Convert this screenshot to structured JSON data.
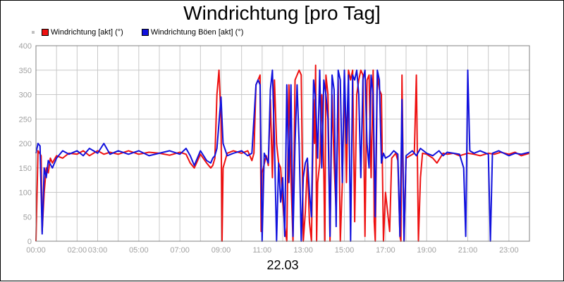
{
  "chart_data": {
    "type": "line",
    "title": "Windrichtung [pro Tag]",
    "xlabel": "22.03",
    "ylabel": "",
    "ylim": [
      0,
      400
    ],
    "yticks": [
      "0",
      "50",
      "100",
      "150",
      "200",
      "250",
      "300",
      "350",
      "400"
    ],
    "xlim": [
      0,
      24
    ],
    "xticks": [
      {
        "x": 0,
        "label": "00:00"
      },
      {
        "x": 2,
        "label": "02:00"
      },
      {
        "x": 3,
        "label": "03:00"
      },
      {
        "x": 5,
        "label": "05:00"
      },
      {
        "x": 7,
        "label": "07:00"
      },
      {
        "x": 9,
        "label": "09:00"
      },
      {
        "x": 11,
        "label": "11:00"
      },
      {
        "x": 13,
        "label": "13:00"
      },
      {
        "x": 15,
        "label": "15:00"
      },
      {
        "x": 17,
        "label": "17:00"
      },
      {
        "x": 19,
        "label": "19:00"
      },
      {
        "x": 21,
        "label": "21:00"
      },
      {
        "x": 23,
        "label": "23:00"
      }
    ],
    "grid": true,
    "legend_position": "top-left",
    "series": [
      {
        "name": "Windrichtung [akt] (°)",
        "color": "#ee1111",
        "points": [
          [
            0.0,
            0
          ],
          [
            0.1,
            185
          ],
          [
            0.25,
            175
          ],
          [
            0.3,
            20
          ],
          [
            0.4,
            100
          ],
          [
            0.5,
            150
          ],
          [
            0.6,
            140
          ],
          [
            0.7,
            170
          ],
          [
            0.8,
            160
          ],
          [
            1.0,
            175
          ],
          [
            1.3,
            170
          ],
          [
            1.6,
            180
          ],
          [
            2.0,
            178
          ],
          [
            2.3,
            185
          ],
          [
            2.6,
            175
          ],
          [
            3.0,
            185
          ],
          [
            3.3,
            178
          ],
          [
            3.6,
            182
          ],
          [
            4.0,
            178
          ],
          [
            4.5,
            185
          ],
          [
            5.0,
            178
          ],
          [
            5.5,
            182
          ],
          [
            6.0,
            180
          ],
          [
            6.5,
            176
          ],
          [
            7.0,
            182
          ],
          [
            7.3,
            178
          ],
          [
            7.5,
            160
          ],
          [
            7.7,
            150
          ],
          [
            8.0,
            178
          ],
          [
            8.3,
            160
          ],
          [
            8.5,
            150
          ],
          [
            8.6,
            155
          ],
          [
            8.7,
            170
          ],
          [
            8.8,
            300
          ],
          [
            8.9,
            350
          ],
          [
            9.0,
            250
          ],
          [
            9.05,
            0
          ],
          [
            9.1,
            150
          ],
          [
            9.3,
            180
          ],
          [
            9.6,
            185
          ],
          [
            10.0,
            180
          ],
          [
            10.3,
            185
          ],
          [
            10.5,
            165
          ],
          [
            10.6,
            180
          ],
          [
            10.7,
            320
          ],
          [
            10.8,
            330
          ],
          [
            10.9,
            340
          ],
          [
            10.95,
            20
          ],
          [
            11.0,
            140
          ],
          [
            11.2,
            175
          ],
          [
            11.3,
            155
          ],
          [
            11.4,
            290
          ],
          [
            11.5,
            130
          ],
          [
            11.6,
            330
          ],
          [
            11.7,
            200
          ],
          [
            11.8,
            160
          ],
          [
            11.9,
            150
          ],
          [
            12.0,
            80
          ],
          [
            12.1,
            30
          ],
          [
            12.2,
            0
          ],
          [
            12.3,
            320
          ],
          [
            12.4,
            130
          ],
          [
            12.5,
            0
          ],
          [
            12.6,
            330
          ],
          [
            12.7,
            340
          ],
          [
            12.8,
            350
          ],
          [
            12.9,
            340
          ],
          [
            13.0,
            0
          ],
          [
            13.1,
            60
          ],
          [
            13.2,
            160
          ],
          [
            13.3,
            40
          ],
          [
            13.4,
            0
          ],
          [
            13.5,
            290
          ],
          [
            13.55,
            200
          ],
          [
            13.6,
            360
          ],
          [
            13.65,
            0
          ],
          [
            13.7,
            120
          ],
          [
            13.8,
            160
          ],
          [
            13.9,
            300
          ],
          [
            14.0,
            140
          ],
          [
            14.05,
            0
          ],
          [
            14.1,
            340
          ],
          [
            14.2,
            300
          ],
          [
            14.3,
            0
          ],
          [
            14.4,
            300
          ],
          [
            14.5,
            160
          ],
          [
            14.6,
            60
          ],
          [
            14.7,
            330
          ],
          [
            14.8,
            0
          ],
          [
            14.9,
            120
          ],
          [
            15.0,
            340
          ],
          [
            15.1,
            120
          ],
          [
            15.2,
            350
          ],
          [
            15.3,
            330
          ],
          [
            15.4,
            350
          ],
          [
            15.5,
            40
          ],
          [
            15.6,
            300
          ],
          [
            15.7,
            330
          ],
          [
            15.8,
            350
          ],
          [
            15.9,
            340
          ],
          [
            16.0,
            10
          ],
          [
            16.1,
            330
          ],
          [
            16.2,
            340
          ],
          [
            16.3,
            130
          ],
          [
            16.4,
            350
          ],
          [
            16.45,
            40
          ],
          [
            16.5,
            0
          ],
          [
            16.6,
            340
          ],
          [
            16.7,
            310
          ],
          [
            16.8,
            300
          ],
          [
            16.9,
            0
          ],
          [
            17.0,
            100
          ],
          [
            17.1,
            60
          ],
          [
            17.2,
            20
          ],
          [
            17.3,
            170
          ],
          [
            17.5,
            180
          ],
          [
            17.6,
            165
          ],
          [
            17.7,
            10
          ],
          [
            17.75,
            0
          ],
          [
            17.8,
            340
          ],
          [
            17.9,
            0
          ],
          [
            18.0,
            170
          ],
          [
            18.2,
            175
          ],
          [
            18.4,
            180
          ],
          [
            18.5,
            340
          ],
          [
            18.6,
            0
          ],
          [
            18.7,
            130
          ],
          [
            18.8,
            180
          ],
          [
            19.0,
            178
          ],
          [
            19.3,
            170
          ],
          [
            19.5,
            160
          ],
          [
            19.8,
            180
          ],
          [
            20.0,
            178
          ],
          [
            20.3,
            180
          ],
          [
            20.6,
            175
          ],
          [
            21.0,
            180
          ],
          [
            21.3,
            178
          ],
          [
            21.6,
            175
          ],
          [
            22.0,
            180
          ],
          [
            22.3,
            178
          ],
          [
            22.6,
            182
          ],
          [
            23.0,
            178
          ],
          [
            23.3,
            182
          ],
          [
            23.6,
            175
          ],
          [
            24.0,
            180
          ]
        ]
      },
      {
        "name": "Windrichtung Böen [akt] (°)",
        "color": "#1111dd",
        "points": [
          [
            0.0,
            180
          ],
          [
            0.1,
            200
          ],
          [
            0.2,
            195
          ],
          [
            0.3,
            15
          ],
          [
            0.4,
            150
          ],
          [
            0.5,
            130
          ],
          [
            0.6,
            165
          ],
          [
            0.8,
            150
          ],
          [
            1.0,
            170
          ],
          [
            1.3,
            185
          ],
          [
            1.6,
            178
          ],
          [
            2.0,
            185
          ],
          [
            2.3,
            175
          ],
          [
            2.6,
            190
          ],
          [
            3.0,
            180
          ],
          [
            3.3,
            200
          ],
          [
            3.6,
            178
          ],
          [
            4.0,
            185
          ],
          [
            4.5,
            178
          ],
          [
            5.0,
            185
          ],
          [
            5.5,
            175
          ],
          [
            6.0,
            180
          ],
          [
            6.5,
            185
          ],
          [
            7.0,
            178
          ],
          [
            7.3,
            190
          ],
          [
            7.5,
            175
          ],
          [
            7.7,
            155
          ],
          [
            8.0,
            185
          ],
          [
            8.3,
            165
          ],
          [
            8.5,
            160
          ],
          [
            8.6,
            170
          ],
          [
            8.7,
            175
          ],
          [
            8.8,
            190
          ],
          [
            9.0,
            295
          ],
          [
            9.1,
            200
          ],
          [
            9.3,
            175
          ],
          [
            9.6,
            180
          ],
          [
            10.0,
            185
          ],
          [
            10.3,
            175
          ],
          [
            10.5,
            180
          ],
          [
            10.7,
            320
          ],
          [
            10.8,
            330
          ],
          [
            10.9,
            320
          ],
          [
            11.0,
            0
          ],
          [
            11.1,
            180
          ],
          [
            11.3,
            160
          ],
          [
            11.4,
            310
          ],
          [
            11.5,
            350
          ],
          [
            11.6,
            200
          ],
          [
            11.7,
            0
          ],
          [
            11.8,
            160
          ],
          [
            11.9,
            80
          ],
          [
            12.0,
            130
          ],
          [
            12.1,
            10
          ],
          [
            12.2,
            320
          ],
          [
            12.3,
            120
          ],
          [
            12.4,
            320
          ],
          [
            12.5,
            10
          ],
          [
            12.6,
            200
          ],
          [
            12.7,
            320
          ],
          [
            12.8,
            200
          ],
          [
            12.9,
            0
          ],
          [
            13.0,
            130
          ],
          [
            13.1,
            160
          ],
          [
            13.2,
            170
          ],
          [
            13.3,
            100
          ],
          [
            13.4,
            50
          ],
          [
            13.5,
            330
          ],
          [
            13.6,
            290
          ],
          [
            13.7,
            170
          ],
          [
            13.8,
            350
          ],
          [
            13.9,
            150
          ],
          [
            14.0,
            330
          ],
          [
            14.1,
            300
          ],
          [
            14.2,
            250
          ],
          [
            14.3,
            10
          ],
          [
            14.4,
            340
          ],
          [
            14.5,
            310
          ],
          [
            14.6,
            30
          ],
          [
            14.7,
            350
          ],
          [
            14.8,
            330
          ],
          [
            14.9,
            120
          ],
          [
            15.0,
            350
          ],
          [
            15.1,
            200
          ],
          [
            15.2,
            340
          ],
          [
            15.3,
            0
          ],
          [
            15.4,
            340
          ],
          [
            15.5,
            330
          ],
          [
            15.6,
            350
          ],
          [
            15.7,
            300
          ],
          [
            15.8,
            130
          ],
          [
            15.9,
            330
          ],
          [
            16.0,
            350
          ],
          [
            16.1,
            200
          ],
          [
            16.2,
            150
          ],
          [
            16.3,
            340
          ],
          [
            16.4,
            300
          ],
          [
            16.5,
            50
          ],
          [
            16.6,
            350
          ],
          [
            16.7,
            330
          ],
          [
            16.8,
            160
          ],
          [
            16.9,
            180
          ],
          [
            17.0,
            170
          ],
          [
            17.2,
            175
          ],
          [
            17.4,
            185
          ],
          [
            17.6,
            178
          ],
          [
            17.7,
            10
          ],
          [
            17.8,
            290
          ],
          [
            17.9,
            0
          ],
          [
            18.0,
            175
          ],
          [
            18.3,
            185
          ],
          [
            18.5,
            175
          ],
          [
            18.7,
            190
          ],
          [
            19.0,
            180
          ],
          [
            19.3,
            175
          ],
          [
            19.6,
            185
          ],
          [
            19.8,
            175
          ],
          [
            20.0,
            182
          ],
          [
            20.3,
            180
          ],
          [
            20.6,
            178
          ],
          [
            20.8,
            150
          ],
          [
            20.9,
            10
          ],
          [
            21.0,
            350
          ],
          [
            21.1,
            185
          ],
          [
            21.3,
            180
          ],
          [
            21.6,
            185
          ],
          [
            22.0,
            178
          ],
          [
            22.1,
            0
          ],
          [
            22.2,
            180
          ],
          [
            22.5,
            185
          ],
          [
            23.0,
            175
          ],
          [
            23.3,
            180
          ],
          [
            23.6,
            178
          ],
          [
            24.0,
            182
          ]
        ]
      }
    ]
  }
}
